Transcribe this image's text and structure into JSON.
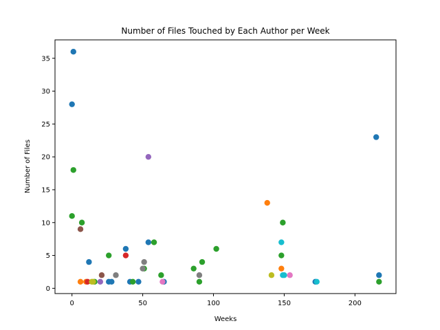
{
  "chart_data": {
    "type": "scatter",
    "title": "Number of Files Touched by Each Author per Week",
    "xlabel": "Weeks",
    "ylabel": "Number of Files",
    "xlim": [
      -12,
      229
    ],
    "ylim": [
      -0.8,
      37.8
    ],
    "xticks": [
      0,
      50,
      100,
      150,
      200
    ],
    "yticks": [
      0,
      5,
      10,
      15,
      20,
      25,
      30,
      35
    ],
    "grid": false,
    "series": [
      {
        "color": "#1f77b4",
        "points": [
          [
            1,
            36
          ],
          [
            0,
            28
          ],
          [
            12,
            4
          ],
          [
            38,
            6
          ],
          [
            54,
            7
          ],
          [
            215,
            23
          ],
          [
            217,
            2
          ],
          [
            26,
            1
          ],
          [
            28,
            1
          ],
          [
            41,
            1
          ],
          [
            47,
            1
          ],
          [
            65,
            1
          ],
          [
            172,
            1
          ]
        ]
      },
      {
        "color": "#ff7f0e",
        "points": [
          [
            138,
            13
          ],
          [
            148,
            3
          ],
          [
            6,
            1
          ],
          [
            10,
            1
          ]
        ]
      },
      {
        "color": "#2ca02c",
        "points": [
          [
            1,
            18
          ],
          [
            0,
            11
          ],
          [
            7,
            10
          ],
          [
            149,
            10
          ],
          [
            102,
            6
          ],
          [
            58,
            7
          ],
          [
            26,
            5
          ],
          [
            148,
            5
          ],
          [
            92,
            4
          ],
          [
            86,
            3
          ],
          [
            51,
            3
          ],
          [
            63,
            2
          ],
          [
            90,
            1
          ],
          [
            217,
            1
          ],
          [
            16,
            1
          ],
          [
            43,
            1
          ]
        ]
      },
      {
        "color": "#d62728",
        "points": [
          [
            38,
            5
          ],
          [
            11,
            1
          ]
        ]
      },
      {
        "color": "#9467bd",
        "points": [
          [
            54,
            20
          ],
          [
            20,
            1
          ]
        ]
      },
      {
        "color": "#8c564b",
        "points": [
          [
            6,
            9
          ],
          [
            21,
            2
          ]
        ]
      },
      {
        "color": "#e377c2",
        "points": [
          [
            154,
            2
          ],
          [
            64,
            1
          ]
        ]
      },
      {
        "color": "#7f7f7f",
        "points": [
          [
            51,
            4
          ],
          [
            50,
            3
          ],
          [
            31,
            2
          ],
          [
            90,
            2
          ]
        ]
      },
      {
        "color": "#bcbd22",
        "points": [
          [
            141,
            2
          ],
          [
            14,
            1
          ],
          [
            15,
            1
          ]
        ]
      },
      {
        "color": "#17becf",
        "points": [
          [
            148,
            7
          ],
          [
            149,
            2
          ],
          [
            150,
            2
          ],
          [
            173,
            1
          ]
        ]
      }
    ]
  }
}
